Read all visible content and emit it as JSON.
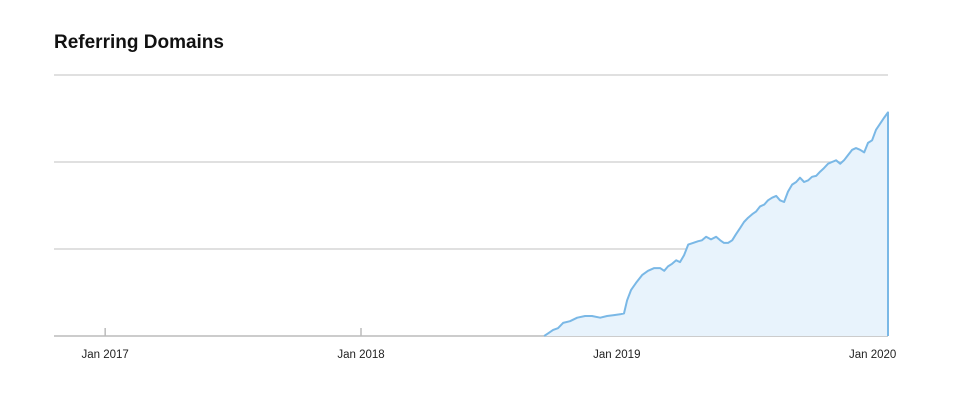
{
  "chart_data": {
    "type": "area",
    "title": "Referring Domains",
    "x": [
      2018.716,
      2018.731,
      2018.751,
      2018.77,
      2018.79,
      2018.817,
      2018.845,
      2018.876,
      2018.903,
      2018.935,
      2018.962,
      2018.989,
      2019.013,
      2019.028,
      2019.04,
      2019.056,
      2019.075,
      2019.099,
      2019.122,
      2019.146,
      2019.169,
      2019.185,
      2019.2,
      2019.216,
      2019.232,
      2019.247,
      2019.263,
      2019.279,
      2019.298,
      2019.318,
      2019.333,
      2019.349,
      2019.368,
      2019.388,
      2019.404,
      2019.419,
      2019.435,
      2019.451,
      2019.466,
      2019.482,
      2019.497,
      2019.513,
      2019.529,
      2019.544,
      2019.56,
      2019.576,
      2019.591,
      2019.607,
      2019.623,
      2019.638,
      2019.654,
      2019.669,
      2019.685,
      2019.701,
      2019.716,
      2019.732,
      2019.748,
      2019.763,
      2019.779,
      2019.795,
      2019.81,
      2019.826,
      2019.841,
      2019.857,
      2019.873,
      2019.888,
      2019.904,
      2019.92,
      2019.935,
      2019.951,
      2019.967,
      2019.982,
      2019.998,
      2020.013,
      2020.029,
      2020.045,
      2020.06
    ],
    "values": [
      0,
      0.03,
      0.07,
      0.09,
      0.15,
      0.17,
      0.21,
      0.23,
      0.23,
      0.21,
      0.23,
      0.24,
      0.25,
      0.26,
      0.41,
      0.53,
      0.61,
      0.7,
      0.75,
      0.78,
      0.78,
      0.75,
      0.8,
      0.83,
      0.87,
      0.85,
      0.93,
      1.05,
      1.07,
      1.09,
      1.1,
      1.14,
      1.11,
      1.14,
      1.1,
      1.07,
      1.07,
      1.1,
      1.17,
      1.24,
      1.31,
      1.36,
      1.4,
      1.43,
      1.49,
      1.51,
      1.56,
      1.59,
      1.61,
      1.56,
      1.54,
      1.66,
      1.74,
      1.77,
      1.82,
      1.77,
      1.79,
      1.83,
      1.84,
      1.89,
      1.93,
      1.98,
      2.0,
      2.02,
      1.98,
      2.02,
      2.08,
      2.14,
      2.16,
      2.14,
      2.11,
      2.22,
      2.25,
      2.37,
      2.44,
      2.51,
      2.57
    ],
    "color": "#7ab8e6",
    "fill": "#e8f3fc",
    "xlim": [
      2016.8,
      2020.06
    ],
    "xticks": [
      {
        "value": 2017,
        "label": "Jan 2017"
      },
      {
        "value": 2018,
        "label": "Jan 2018"
      },
      {
        "value": 2019,
        "label": "Jan 2019"
      },
      {
        "value": 2020,
        "label": "Jan 2020"
      }
    ],
    "ylim": [
      0,
      3
    ],
    "yticks": [
      0,
      1,
      2,
      3
    ],
    "grid": true
  }
}
